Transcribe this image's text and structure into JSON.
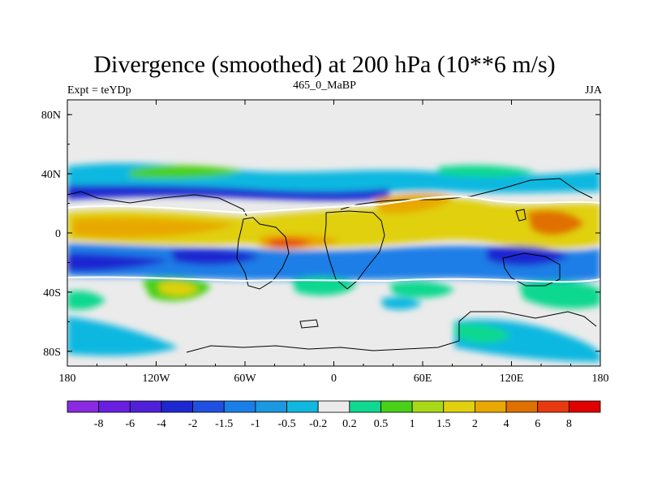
{
  "chart_data": {
    "type": "heatmap",
    "title": "Divergence (smoothed) at 200 hPa (10**6 m/s)",
    "left_label": "Expt = teYDp",
    "center_label": "465_0_MaBP",
    "right_label": "JJA",
    "x_range": [
      -180,
      180
    ],
    "y_range": [
      -90,
      90
    ],
    "x_ticks": [
      {
        "value": -180,
        "label": "180"
      },
      {
        "value": -120,
        "label": "120W"
      },
      {
        "value": -60,
        "label": "60W"
      },
      {
        "value": 0,
        "label": "0"
      },
      {
        "value": 60,
        "label": "60E"
      },
      {
        "value": 120,
        "label": "120E"
      },
      {
        "value": 180,
        "label": "180"
      }
    ],
    "y_ticks": [
      {
        "value": 80,
        "label": "80N"
      },
      {
        "value": 40,
        "label": "40N"
      },
      {
        "value": 0,
        "label": "0"
      },
      {
        "value": -40,
        "label": "40S"
      },
      {
        "value": -80,
        "label": "80S"
      }
    ],
    "colorbar": {
      "colors": [
        "#8a2be2",
        "#6a1ee0",
        "#5020d8",
        "#1e28d0",
        "#2050e0",
        "#1a7ee6",
        "#1a98e0",
        "#10b8e0",
        "#ebebeb",
        "#10d890",
        "#48d018",
        "#a8d818",
        "#e0d010",
        "#e8a800",
        "#e07000",
        "#e83a10",
        "#e00000"
      ],
      "labels": [
        "-8",
        "-6",
        "-4",
        "-2",
        "-1.5",
        "-1",
        "-0.5",
        "-0.2",
        "0.2",
        "0.5",
        "1",
        "1.5",
        "2",
        "4",
        "6",
        "8"
      ]
    },
    "features": [
      {
        "lon": -150,
        "lat": -8,
        "level": 3
      },
      {
        "lon": -60,
        "lat": -12,
        "level": -4
      },
      {
        "lon": -150,
        "lat": -28,
        "level": -2
      },
      {
        "lon": -10,
        "lat": -28,
        "level": -2
      },
      {
        "lon": 30,
        "lat": -12,
        "level": 3
      },
      {
        "lon": 110,
        "lat": -22,
        "level": -2
      },
      {
        "lon": 65,
        "lat": 8,
        "level": 3
      },
      {
        "lon": 145,
        "lat": 5,
        "level": 4
      },
      {
        "lon": -50,
        "lat": 5,
        "level": 4
      },
      {
        "lon": -110,
        "lat": 35,
        "level": 1
      },
      {
        "lon": 10,
        "lat": 32,
        "level": 1
      },
      {
        "lon": -110,
        "lat": -38,
        "level": 2
      },
      {
        "lon": -40,
        "lat": -38,
        "level": 1
      },
      {
        "lon": 20,
        "lat": -38,
        "level": 1
      },
      {
        "lon": 145,
        "lat": -40,
        "level": 1
      },
      {
        "lon": -140,
        "lat": -70,
        "level": -1
      },
      {
        "lon": 140,
        "lat": -70,
        "level": -1
      }
    ]
  }
}
